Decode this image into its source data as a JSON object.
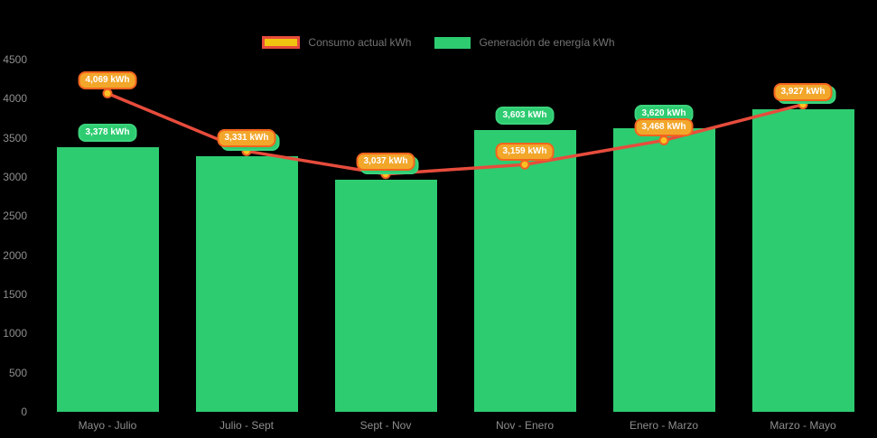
{
  "legend": {
    "consumption_label": "Consumo actual kWh",
    "generation_label": "Generación de energía kWh"
  },
  "colors": {
    "background": "#000000",
    "bar_green": "#2ecc71",
    "line_red": "#e74c3c",
    "pill_orange_bg": "#f2a72b",
    "pill_orange_border": "#f3641e",
    "pill_green_bg": "#2ecc71",
    "marker_yellow": "#fcc223",
    "marker_ring": "#ef6024",
    "axis_text": "#8e8e8e",
    "legend_text": "#747474",
    "legend_consumption_fill": "#f1c40f",
    "legend_consumption_border": "#e74c3c"
  },
  "chart_data": {
    "type": "bar",
    "categories": [
      "Mayo - Julio",
      "Julio - Sept",
      "Sept - Nov",
      "Nov - Enero",
      "Enero - Marzo",
      "Marzo - Mayo"
    ],
    "series": [
      {
        "name": "Generación de energía kWh",
        "type": "bar",
        "color": "#2ecc71",
        "values": [
          3378,
          3270,
          2960,
          3603,
          3620,
          3870
        ],
        "labels": [
          "3,378 kWh",
          "3,270 kWh",
          "2,960 kWh",
          "3,603 kWh",
          "3,620 kWh",
          "3,870 kWh"
        ],
        "labels_occluded": [
          false,
          true,
          true,
          false,
          false,
          true
        ]
      },
      {
        "name": "Consumo actual kWh",
        "type": "line",
        "color": "#e74c3c",
        "values": [
          4069,
          3331,
          3037,
          3159,
          3468,
          3927
        ],
        "labels": [
          "4,069 kWh",
          "3,331 kWh",
          "3,037 kWh",
          "3,159 kWh",
          "3,468 kWh",
          "3,927 kWh"
        ]
      }
    ],
    "ylim": [
      0,
      4500
    ],
    "yticks": [
      0,
      500,
      1000,
      1500,
      2000,
      2500,
      3000,
      3500,
      4000,
      4500
    ],
    "grid": false,
    "legend_position": "top"
  }
}
